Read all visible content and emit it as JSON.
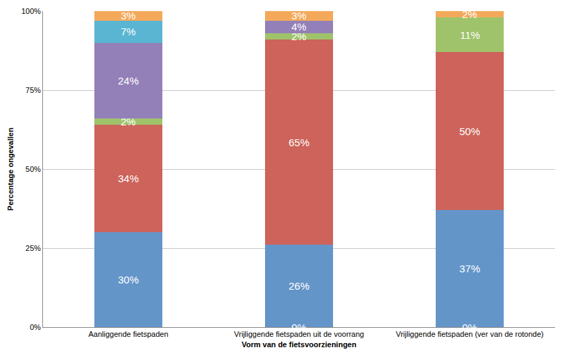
{
  "chart_data": {
    "type": "bar",
    "stacked": true,
    "data_labels": true,
    "grid": true,
    "x_label": "Vorm van de fietsvoorzieningen",
    "y_label": "Percentage ongevallen",
    "categories": [
      "Aanliggende fietspaden",
      "Vrijliggende fietspaden uit de voorrang",
      "Vrijliggende fietspaden (ver van de rotonde)"
    ],
    "ylim": [
      0,
      100
    ],
    "yticks": [
      {
        "value": 0,
        "label": "0%"
      },
      {
        "value": 25,
        "label": "25%"
      },
      {
        "value": 50,
        "label": "50%"
      },
      {
        "value": 75,
        "label": "75%"
      },
      {
        "value": 100,
        "label": "100%"
      }
    ],
    "series": [
      {
        "values": [
          null,
          0,
          0
        ],
        "value_labels": [
          null,
          "0%",
          "0%"
        ]
      },
      {
        "color": "#6495c9",
        "values": [
          30,
          26,
          37
        ],
        "value_labels": [
          "30%",
          "26%",
          "37%"
        ]
      },
      {
        "color": "#cd635a",
        "values": [
          34,
          65,
          50
        ],
        "value_labels": [
          "34%",
          "65%",
          "50%"
        ]
      },
      {
        "color": "#9fc36a",
        "values": [
          2,
          2,
          11
        ],
        "value_labels": [
          "2%",
          "2%",
          "11%"
        ]
      },
      {
        "color": "#9480b8",
        "values": [
          24,
          4,
          null
        ],
        "value_labels": [
          "24%",
          "4%",
          null
        ]
      },
      {
        "color": "#5ab5d2",
        "values": [
          7,
          null,
          null
        ],
        "value_labels": [
          "7%",
          null,
          null
        ]
      },
      {
        "color": "#f4a95a",
        "values": [
          3,
          3,
          2
        ],
        "value_labels": [
          "3%",
          "3%",
          "2%"
        ]
      }
    ]
  }
}
